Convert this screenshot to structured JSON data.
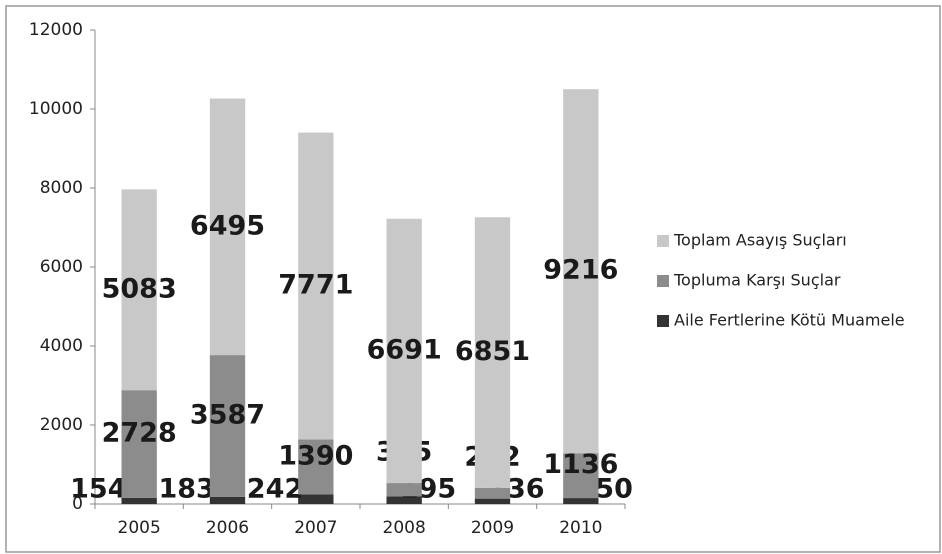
{
  "chart_data": {
    "type": "stacked_bar",
    "categories": [
      "2005",
      "2006",
      "2007",
      "2008",
      "2009",
      "2010"
    ],
    "series": [
      {
        "name": "Aile Fertlerine Kötü Muamele",
        "color": "#333333",
        "values": [
          154,
          183,
          242,
          195,
          136,
          150
        ]
      },
      {
        "name": "Topluma Karşı Suçlar",
        "color": "#8c8c8c",
        "values": [
          2728,
          3587,
          1390,
          335,
          272,
          1136
        ]
      },
      {
        "name": "Toplam Asayış Suçları",
        "color": "#c8c8c8",
        "values": [
          5083,
          6495,
          7771,
          6691,
          6851,
          9216
        ]
      }
    ],
    "ylim": [
      0,
      12000
    ],
    "yticks": [
      0,
      2000,
      4000,
      6000,
      8000,
      10000,
      12000
    ],
    "grid": false,
    "legend": "right"
  }
}
